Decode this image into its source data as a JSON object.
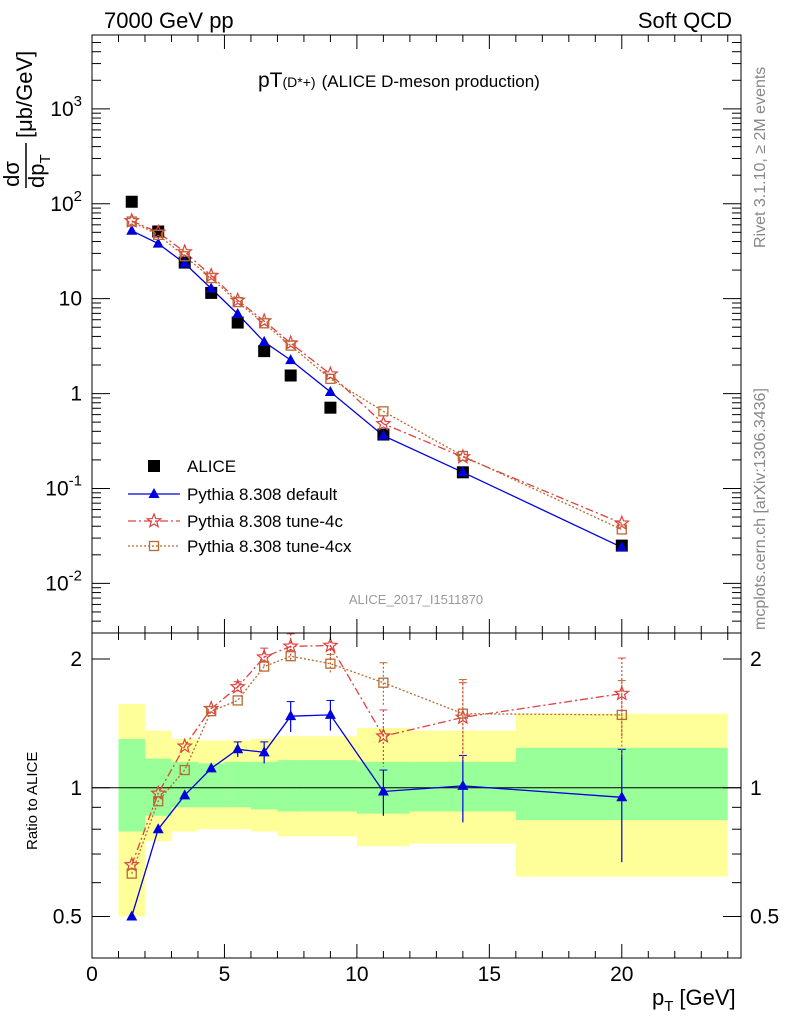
{
  "header": {
    "left": "7000 GeV pp",
    "right": "Soft QCD"
  },
  "title": {
    "main": "pT",
    "sub": "(D*+)",
    "rest": "(ALICE D-meson production)"
  },
  "side_labels": {
    "rivet": "Rivet 3.1.10, ≥ 2M events",
    "mcplots": "mcplots.cern.ch [arXiv:1306.3436]"
  },
  "watermark": "ALICE_2017_I1511870",
  "axes": {
    "ylabel_num": "dσ",
    "ylabel_den": "dp",
    "ylabel_den_sub": "T",
    "ylabel_unit": "[μb/GeV]",
    "xlabel": "p",
    "xlabel_sub": "T",
    "xlabel_unit": "[GeV]",
    "ratio_ylabel": "Ratio to ALICE"
  },
  "chart_data": {
    "type": "scatter",
    "x_range": [
      0,
      24.5
    ],
    "main_ylim": [
      0.003,
      6000
    ],
    "main_log": true,
    "ratio_ylim": [
      0.4,
      2.3
    ],
    "ratio_log": true,
    "x_ticks": [
      0,
      5,
      10,
      15,
      20
    ],
    "main_ticks": [
      {
        "v": 0.01,
        "m": "10",
        "e": "-2"
      },
      {
        "v": 0.1,
        "m": "10",
        "e": "-1"
      },
      {
        "v": 1,
        "m": "1",
        "e": ""
      },
      {
        "v": 10,
        "m": "10",
        "e": ""
      },
      {
        "v": 100,
        "m": "10",
        "e": "2"
      },
      {
        "v": 1000,
        "m": "10",
        "e": "3"
      }
    ],
    "ratio_ticks": [
      {
        "v": 0.5,
        "label": "0.5"
      },
      {
        "v": 1,
        "label": "1"
      },
      {
        "v": 2,
        "label": "2"
      }
    ],
    "bins": [
      [
        1,
        2
      ],
      [
        2,
        3
      ],
      [
        3,
        4
      ],
      [
        4,
        5
      ],
      [
        5,
        6
      ],
      [
        6,
        7
      ],
      [
        7,
        8
      ],
      [
        8,
        10
      ],
      [
        10,
        12
      ],
      [
        12,
        16
      ],
      [
        16,
        24
      ]
    ],
    "band_green": [
      [
        0.79,
        1.3
      ],
      [
        0.86,
        1.17
      ],
      [
        0.9,
        1.15
      ],
      [
        0.9,
        1.14
      ],
      [
        0.9,
        1.15
      ],
      [
        0.89,
        1.15
      ],
      [
        0.88,
        1.16
      ],
      [
        0.88,
        1.16
      ],
      [
        0.87,
        1.15
      ],
      [
        0.88,
        1.15
      ],
      [
        0.84,
        1.24
      ]
    ],
    "band_yellow": [
      [
        0.5,
        1.57
      ],
      [
        0.75,
        1.36
      ],
      [
        0.79,
        1.3
      ],
      [
        0.8,
        1.29
      ],
      [
        0.8,
        1.29
      ],
      [
        0.79,
        1.3
      ],
      [
        0.77,
        1.32
      ],
      [
        0.77,
        1.32
      ],
      [
        0.73,
        1.38
      ],
      [
        0.74,
        1.36
      ],
      [
        0.62,
        1.49
      ]
    ],
    "series": [
      {
        "name": "ALICE",
        "color": "#000000",
        "marker": "square-filled",
        "x": [
          1.5,
          2.5,
          3.5,
          4.5,
          5.5,
          6.5,
          7.5,
          9,
          11,
          14,
          20
        ],
        "y": [
          105,
          51,
          24,
          11.5,
          5.6,
          2.8,
          1.55,
          0.71,
          0.37,
          0.148,
          0.025
        ]
      },
      {
        "name": "Pythia 8.308 default",
        "color": "#0000dd",
        "marker": "triangle-filled",
        "dash": "",
        "x": [
          1.5,
          2.5,
          3.5,
          4.5,
          5.5,
          6.5,
          7.5,
          9,
          11,
          14,
          20
        ],
        "y": [
          52,
          38,
          23.5,
          12.8,
          6.9,
          3.5,
          2.25,
          1.04,
          0.36,
          0.148,
          0.024
        ],
        "ratio": [
          0.5,
          0.8,
          0.96,
          1.11,
          1.23,
          1.21,
          1.47,
          1.48,
          0.98,
          1.01,
          0.95
        ],
        "ratio_err": [
          0,
          0,
          0,
          0,
          0.05,
          0.07,
          0.12,
          0.12,
          0.12,
          0.18,
          0.28
        ]
      },
      {
        "name": "Pythia 8.308 tune-4c",
        "color": "#e04040",
        "marker": "star-open",
        "dash": "8 3 2 3",
        "x": [
          1.5,
          2.5,
          3.5,
          4.5,
          5.5,
          6.5,
          7.5,
          9,
          11,
          14,
          20
        ],
        "y": [
          66,
          50,
          31,
          17.5,
          9.6,
          5.8,
          3.4,
          1.6,
          0.48,
          0.215,
          0.043
        ],
        "ratio": [
          0.66,
          0.97,
          1.25,
          1.53,
          1.72,
          2.02,
          2.14,
          2.15,
          1.32,
          1.46,
          1.66
        ],
        "ratio_err": [
          0,
          0,
          0,
          0,
          0.05,
          0.1,
          0.15,
          0.15,
          0.2,
          0.3,
          0.35
        ]
      },
      {
        "name": "Pythia 8.308 tune-4cx",
        "color": "#b86a30",
        "marker": "square-open",
        "dash": "2 2",
        "x": [
          1.5,
          2.5,
          3.5,
          4.5,
          5.5,
          6.5,
          7.5,
          9,
          11,
          14,
          20
        ],
        "y": [
          65,
          47,
          28,
          16.5,
          9.2,
          5.5,
          3.2,
          1.43,
          0.65,
          0.22,
          0.037
        ],
        "ratio": [
          0.63,
          0.93,
          1.1,
          1.51,
          1.6,
          1.92,
          2.03,
          1.95,
          1.76,
          1.49,
          1.48
        ],
        "ratio_err": [
          0,
          0,
          0,
          0,
          0,
          0,
          0,
          0.1,
          0.2,
          0.3,
          0.3
        ]
      }
    ]
  }
}
